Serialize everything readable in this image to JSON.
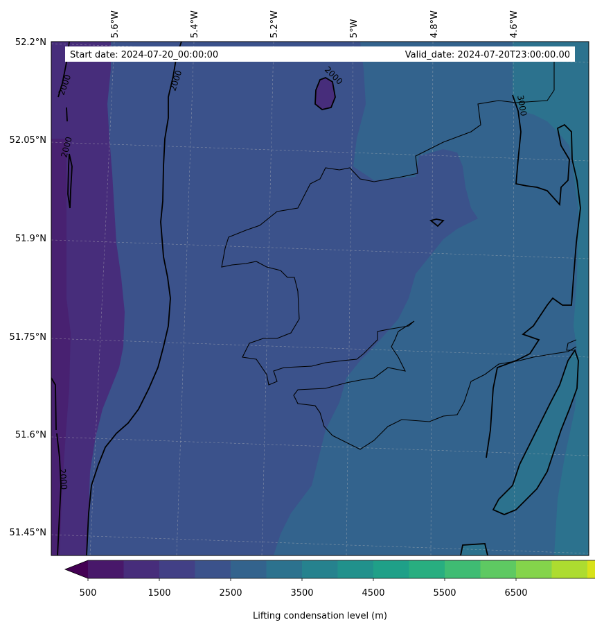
{
  "header": {
    "start_date": "Start date: 2024-07-20_00:00:00",
    "valid_date": "Valid_date: 2024-07-20T23:00:00.00"
  },
  "axes": {
    "lon_labels": [
      "5.6°W",
      "5.4°W",
      "5.2°W",
      "5°W",
      "4.8°W",
      "4.6°W"
    ],
    "lat_labels": [
      "52.2°N",
      "52.05°N",
      "51.9°N",
      "51.75°N",
      "51.6°N",
      "51.45°N"
    ]
  },
  "contour_labels": [
    "2000",
    "2000",
    "2000",
    "2000",
    "2000",
    "3000"
  ],
  "colorbar": {
    "label": "Lifting condensation level (m)",
    "ticks": [
      "500",
      "1500",
      "2500",
      "3500",
      "4500",
      "5500",
      "6500"
    ],
    "colors": [
      "#440154",
      "#48186a",
      "#472d7b",
      "#424086",
      "#3b528b",
      "#33638d",
      "#2c728e",
      "#26828e",
      "#21918c",
      "#1fa088",
      "#28ae80",
      "#3fbc73",
      "#5ec962",
      "#84d44b",
      "#addc30",
      "#d8e219",
      "#fde725"
    ]
  },
  "field_colors": {
    "lcl_1500_2000": "#472d7b",
    "lcl_2000_2500": "#3b528b",
    "lcl_2500_3000": "#33638d",
    "lcl_3000_3500": "#2c728e"
  }
}
